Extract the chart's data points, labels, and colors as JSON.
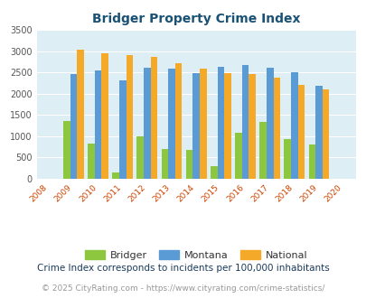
{
  "title": "Bridger Property Crime Index",
  "plot_years": [
    2009,
    2010,
    2011,
    2012,
    2013,
    2014,
    2015,
    2016,
    2017,
    2018,
    2019
  ],
  "bridger": [
    1350,
    820,
    150,
    1000,
    700,
    680,
    290,
    1090,
    1340,
    940,
    800
  ],
  "montana": [
    2470,
    2550,
    2320,
    2600,
    2580,
    2490,
    2630,
    2670,
    2600,
    2510,
    2180
  ],
  "national": [
    3040,
    2950,
    2900,
    2860,
    2720,
    2590,
    2490,
    2460,
    2370,
    2200,
    2110
  ],
  "bridger_color": "#8dc63f",
  "montana_color": "#5b9bd5",
  "national_color": "#f5a929",
  "bg_color": "#ddeef4",
  "ylim": [
    0,
    3500
  ],
  "yticks": [
    0,
    500,
    1000,
    1500,
    2000,
    2500,
    3000,
    3500
  ],
  "all_years": [
    2008,
    2009,
    2010,
    2011,
    2012,
    2013,
    2014,
    2015,
    2016,
    2017,
    2018,
    2019,
    2020
  ],
  "legend_labels": [
    "Bridger",
    "Montana",
    "National"
  ],
  "footnote1": "Crime Index corresponds to incidents per 100,000 inhabitants",
  "footnote2": "© 2025 CityRating.com - https://www.cityrating.com/crime-statistics/",
  "title_color": "#1a5276",
  "footnote1_color": "#1a3a5c",
  "footnote2_color": "#999999",
  "xtick_color": "#cc4400"
}
